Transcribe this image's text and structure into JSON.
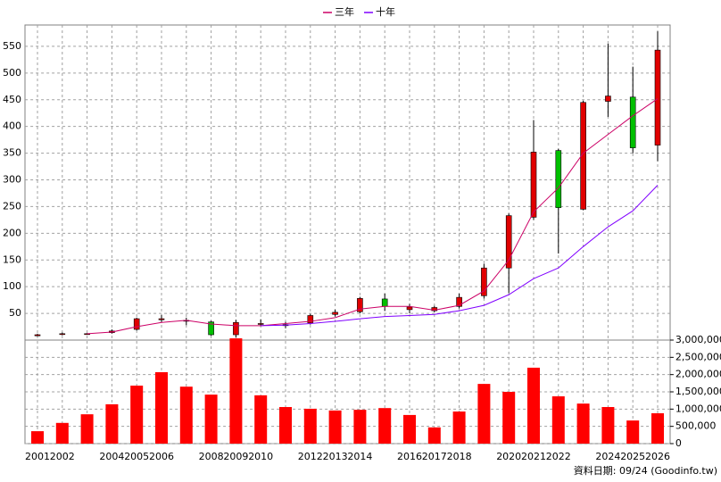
{
  "chart_data": [
    {
      "type": "candlestick",
      "categories": [
        "2001",
        "2002",
        null,
        "2004",
        "2005",
        "2006",
        null,
        "2008",
        "2009",
        "2010",
        null,
        "2012",
        "2013",
        "2014",
        null,
        "2016",
        "2017",
        "2018",
        null,
        "2020",
        "2021",
        "2022",
        null,
        "2024",
        "2025",
        "2026"
      ],
      "open": [
        8,
        11,
        11,
        14,
        20,
        38,
        36,
        34,
        10,
        30,
        27,
        32,
        48,
        53,
        77,
        57,
        55,
        63,
        83,
        135,
        230,
        355,
        245,
        447,
        455,
        365
      ],
      "high": [
        12,
        14,
        13,
        20,
        42,
        47,
        42,
        36,
        38,
        39,
        34,
        49,
        57,
        81,
        87,
        68,
        64,
        87,
        143,
        237,
        412,
        358,
        448,
        555,
        512,
        578
      ],
      "low": [
        7,
        9,
        10,
        12,
        18,
        33,
        28,
        8,
        5,
        26,
        22,
        29,
        44,
        50,
        55,
        50,
        52,
        59,
        78,
        88,
        225,
        162,
        243,
        418,
        350,
        335
      ],
      "close": [
        10,
        12,
        12,
        17,
        40,
        40,
        37,
        10,
        33,
        31,
        29,
        46,
        52,
        78,
        63,
        62,
        61,
        80,
        135,
        233,
        352,
        248,
        445,
        457,
        360,
        543
      ],
      "up_color": "#e00000",
      "down_color": "#00c000",
      "series": [
        {
          "name": "三年",
          "color": "#cc0066",
          "values": [
            null,
            null,
            12,
            15,
            25,
            33,
            37,
            30,
            27,
            27,
            31,
            35,
            42,
            58,
            63,
            63,
            56,
            65,
            92,
            150,
            240,
            285,
            350,
            385,
            420,
            452
          ]
        },
        {
          "name": "十年",
          "color": "#8000ff",
          "values": [
            null,
            null,
            null,
            null,
            null,
            null,
            null,
            null,
            null,
            27,
            28,
            31,
            35,
            40,
            44,
            46,
            48,
            55,
            65,
            85,
            115,
            135,
            175,
            212,
            242,
            290
          ]
        }
      ],
      "ylim": [
        0,
        590
      ],
      "yticks": [
        50,
        100,
        150,
        200,
        250,
        300,
        350,
        400,
        450,
        500,
        550
      ],
      "grid": true,
      "legend": "top"
    },
    {
      "type": "bar",
      "color": "#ff0000",
      "values": [
        360000,
        600000,
        850000,
        1140000,
        1680000,
        2070000,
        1650000,
        1420000,
        3050000,
        1400000,
        1060000,
        1010000,
        960000,
        980000,
        1030000,
        830000,
        470000,
        930000,
        1730000,
        1500000,
        2200000,
        1370000,
        1160000,
        1060000,
        670000,
        880000
      ],
      "ylim": [
        0,
        3000000
      ],
      "yticks": [
        0,
        {
          "value": 500000,
          "label": "500,000"
        },
        {
          "value": 1000000,
          "label": "1,000,000"
        },
        {
          "value": 1500000,
          "label": "1,500,000"
        },
        {
          "value": 2000000,
          "label": "2,000,000"
        },
        {
          "value": 2500000,
          "label": "2,500,000"
        },
        {
          "value": 3000000,
          "label": "3,000,000"
        }
      ],
      "grid": true
    }
  ],
  "footer": "資料日期: 09/24 (Goodinfo.tw)"
}
